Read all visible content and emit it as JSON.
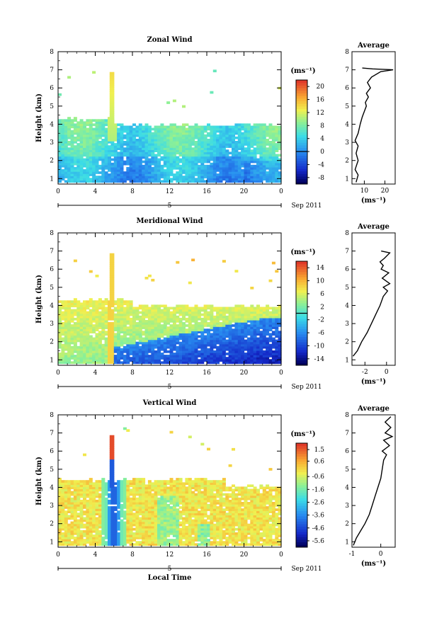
{
  "chart_data": [
    {
      "type": "heatmap",
      "title": "Zonal Wind",
      "ylabel": "Height (km)",
      "unit": "(ms⁻¹)",
      "date": "Sep 2011",
      "day": "5",
      "x_ticks": [
        "0",
        "4",
        "8",
        "12",
        "16",
        "20",
        "0"
      ],
      "y_ticks": [
        "1",
        "2",
        "3",
        "4",
        "5",
        "6",
        "7",
        "8"
      ],
      "colorbar_ticks": [
        "20",
        "16",
        "12",
        "8",
        "4",
        "0",
        "-4",
        "-8"
      ],
      "colorbar_range": [
        -10,
        22
      ],
      "ylim": [
        0.7,
        8
      ],
      "xlim": [
        0,
        24
      ],
      "average": {
        "title": "Average",
        "xlabel": "(ms⁻¹)",
        "x_ticks": [
          "10",
          "20"
        ],
        "xlim": [
          4,
          25
        ],
        "profile": [
          [
            6,
            0.8
          ],
          [
            7,
            1.2
          ],
          [
            5.5,
            1.5
          ],
          [
            7,
            2
          ],
          [
            6,
            2.4
          ],
          [
            7,
            2.8
          ],
          [
            5.5,
            3.1
          ],
          [
            7,
            3.5
          ],
          [
            8,
            4
          ],
          [
            9,
            4.4
          ],
          [
            10,
            4.7
          ],
          [
            11,
            5
          ],
          [
            10.5,
            5.2
          ],
          [
            12,
            5.5
          ],
          [
            11,
            5.7
          ],
          [
            13,
            6
          ],
          [
            11.5,
            6.3
          ],
          [
            13.5,
            6.6
          ],
          [
            18,
            6.9
          ],
          [
            24,
            7.0
          ],
          [
            14,
            7.05
          ],
          [
            9,
            7.1
          ]
        ]
      }
    },
    {
      "type": "heatmap",
      "title": "Meridional Wind",
      "ylabel": "Height (km)",
      "unit": "(ms⁻¹)",
      "date": "Sep 2011",
      "day": "5",
      "x_ticks": [
        "0",
        "4",
        "8",
        "12",
        "16",
        "20",
        "0"
      ],
      "y_ticks": [
        "1",
        "2",
        "3",
        "4",
        "5",
        "6",
        "7",
        "8"
      ],
      "colorbar_ticks": [
        "14",
        "10",
        "6",
        "2",
        "-2",
        "-6",
        "-10",
        "-14"
      ],
      "colorbar_range": [
        -16,
        16
      ],
      "ylim": [
        0.7,
        8
      ],
      "xlim": [
        0,
        24
      ],
      "average": {
        "title": "Average",
        "xlabel": "(ms⁻¹)",
        "x_ticks": [
          "-2",
          "0"
        ],
        "xlim": [
          -3.2,
          0.8
        ],
        "profile": [
          [
            -3.1,
            1.2
          ],
          [
            -2.7,
            1.5
          ],
          [
            -2.3,
            2
          ],
          [
            -1.8,
            2.5
          ],
          [
            -1.4,
            3
          ],
          [
            -1,
            3.5
          ],
          [
            -0.6,
            4
          ],
          [
            -0.3,
            4.5
          ],
          [
            0.1,
            4.8
          ],
          [
            -0.3,
            5
          ],
          [
            0.3,
            5.2
          ],
          [
            -0.4,
            5.5
          ],
          [
            0.2,
            5.8
          ],
          [
            -0.5,
            6
          ],
          [
            -0.3,
            6.2
          ],
          [
            -0.6,
            6.4
          ],
          [
            -0.2,
            6.6
          ],
          [
            0.3,
            6.9
          ],
          [
            -0.5,
            7
          ]
        ]
      }
    },
    {
      "type": "heatmap",
      "title": "Vertical Wind",
      "ylabel": "Height (km)",
      "xlabel": "Local Time",
      "unit": "(ms⁻¹)",
      "date": "Sep 2011",
      "day": "5",
      "x_ticks": [
        "0",
        "4",
        "8",
        "12",
        "16",
        "20",
        "0"
      ],
      "y_ticks": [
        "1",
        "2",
        "3",
        "4",
        "5",
        "6",
        "7",
        "8"
      ],
      "colorbar_ticks": [
        "1.5",
        "0.6",
        "-0.6",
        "-1.6",
        "-2.6",
        "-3.6",
        "-4.6",
        "-5.6"
      ],
      "colorbar_range": [
        -6.1,
        2.0
      ],
      "ylim": [
        0.7,
        8
      ],
      "xlim": [
        0,
        24
      ],
      "average": {
        "title": "Average",
        "xlabel": "(ms⁻¹)",
        "x_ticks": [
          "-1",
          "0"
        ],
        "xlim": [
          -1,
          0.5
        ],
        "profile": [
          [
            -0.95,
            0.8
          ],
          [
            -0.85,
            1.2
          ],
          [
            -0.7,
            1.6
          ],
          [
            -0.55,
            2
          ],
          [
            -0.4,
            2.5
          ],
          [
            -0.3,
            3
          ],
          [
            -0.2,
            3.5
          ],
          [
            -0.1,
            4
          ],
          [
            0,
            4.5
          ],
          [
            0.05,
            5
          ],
          [
            0.1,
            5.5
          ],
          [
            0.2,
            5.8
          ],
          [
            0.05,
            6
          ],
          [
            0.3,
            6.3
          ],
          [
            0.1,
            6.6
          ],
          [
            0.4,
            6.8
          ],
          [
            0.15,
            7
          ],
          [
            0.35,
            7.3
          ],
          [
            0.15,
            7.6
          ],
          [
            0.35,
            7.9
          ]
        ]
      }
    }
  ]
}
